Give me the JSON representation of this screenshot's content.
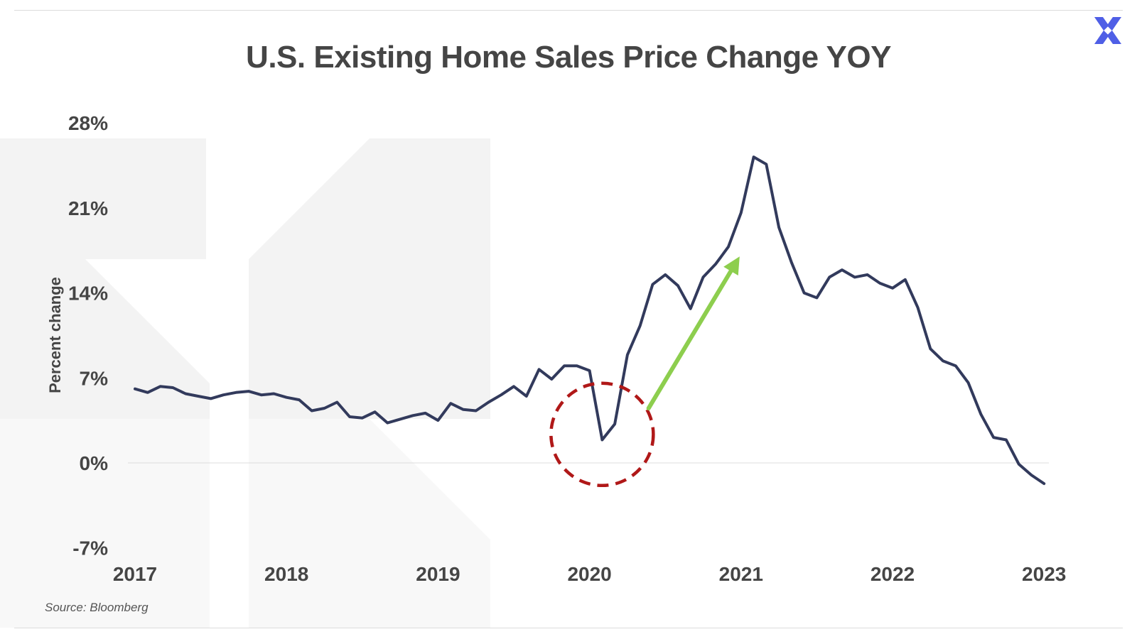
{
  "header": {
    "title": "U.S. Existing Home Sales Price Change YOY",
    "logo_icon": "brand-x-logo-icon",
    "logo_color": "#4f5fe6"
  },
  "footer": {
    "source": "Source: Bloomberg"
  },
  "colors": {
    "line": "#323a5c",
    "circle": "#b01818",
    "arrow": "#8dce4e",
    "axis_text": "#454545",
    "zero_line": "#dddddd",
    "watermark": "#f3f3f3"
  },
  "chart_data": {
    "type": "line",
    "title": "U.S. Existing Home Sales Price Change YOY",
    "ylabel": "Percent change",
    "xlabel": "",
    "ylim": [
      -7,
      28
    ],
    "yticks": [
      28,
      21,
      14,
      7,
      0,
      -7
    ],
    "ytick_labels": [
      "28%",
      "21%",
      "14%",
      "7%",
      "0%",
      "-7%"
    ],
    "xticks": [
      2017,
      2018,
      2019,
      2020,
      2021,
      2022,
      2023
    ],
    "xtick_labels": [
      "2017",
      "2018",
      "2019",
      "2020",
      "2021",
      "2022",
      "2023"
    ],
    "grid": false,
    "zero_line": true,
    "series": [
      {
        "x": [
          "2017-01",
          "2017-02",
          "2017-03",
          "2017-04",
          "2017-05",
          "2017-06",
          "2017-07",
          "2017-08",
          "2017-09",
          "2017-10",
          "2017-11",
          "2017-12",
          "2018-01",
          "2018-02",
          "2018-03",
          "2018-04",
          "2018-05",
          "2018-06",
          "2018-07",
          "2018-08",
          "2018-09",
          "2018-10",
          "2018-11",
          "2018-12",
          "2019-01",
          "2019-02",
          "2019-03",
          "2019-04",
          "2019-05",
          "2019-06",
          "2019-07",
          "2019-08",
          "2019-09",
          "2019-10",
          "2019-11",
          "2019-12",
          "2020-01",
          "2020-02",
          "2020-03",
          "2020-04",
          "2020-05",
          "2020-06",
          "2020-07",
          "2020-08",
          "2020-09",
          "2020-10",
          "2020-11",
          "2020-12",
          "2021-01",
          "2021-02",
          "2021-03",
          "2021-04",
          "2021-05",
          "2021-06",
          "2021-07",
          "2021-08",
          "2021-09",
          "2021-10",
          "2021-11",
          "2021-12",
          "2022-01",
          "2022-02",
          "2022-03",
          "2022-04",
          "2022-05",
          "2022-06",
          "2022-07",
          "2022-08",
          "2022-09",
          "2022-10",
          "2022-11",
          "2022-12",
          "2023-01"
        ],
        "values": [
          6.1,
          5.8,
          6.3,
          6.2,
          5.7,
          5.5,
          5.3,
          5.6,
          5.8,
          5.9,
          5.6,
          5.7,
          5.4,
          5.2,
          4.3,
          4.5,
          5.0,
          3.8,
          3.7,
          4.2,
          3.3,
          3.6,
          3.9,
          4.1,
          3.5,
          4.9,
          4.4,
          4.3,
          5.0,
          5.6,
          6.3,
          5.5,
          7.7,
          6.9,
          8.0,
          8.0,
          7.6,
          1.9,
          3.2,
          8.9,
          11.3,
          14.7,
          15.5,
          14.6,
          12.7,
          15.3,
          16.4,
          17.8,
          20.6,
          25.2,
          24.6,
          19.4,
          16.5,
          14.0,
          13.6,
          15.3,
          15.9,
          15.3,
          15.5,
          14.8,
          14.4,
          15.1,
          12.8,
          9.4,
          8.4,
          8.0,
          6.6,
          4.0,
          2.1,
          1.9,
          -0.1,
          -1.0,
          -1.7
        ]
      }
    ],
    "annotations": [
      {
        "type": "dashed-circle",
        "x": "2020-02",
        "y": 2.0,
        "color": "#b01818"
      },
      {
        "type": "arrow",
        "from": [
          "2020-05",
          4.5
        ],
        "to": [
          "2021-01",
          17.0
        ],
        "color": "#8dce4e"
      }
    ]
  }
}
